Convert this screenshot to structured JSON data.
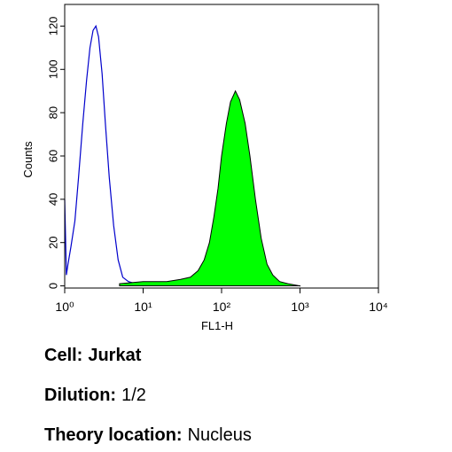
{
  "chart_data": {
    "type": "histogram-overlay",
    "xlabel": "FL1-H",
    "ylabel": "Counts",
    "xscale": "log",
    "xlim": [
      1,
      10000
    ],
    "xticks": [
      {
        "value": 1,
        "label": "10⁰"
      },
      {
        "value": 10,
        "label": "10¹"
      },
      {
        "value": 100,
        "label": "10²"
      },
      {
        "value": 1000,
        "label": "10³"
      },
      {
        "value": 10000,
        "label": "10⁴"
      }
    ],
    "ylim": [
      -1,
      130
    ],
    "yticks": [
      0,
      20,
      40,
      60,
      80,
      100,
      120
    ],
    "series": [
      {
        "style": "outline",
        "color": "#0000cc",
        "x": [
          1,
          1.05,
          1.1,
          1.2,
          1.35,
          1.5,
          1.7,
          1.9,
          2.1,
          2.3,
          2.5,
          2.7,
          3.0,
          3.3,
          3.7,
          4.2,
          4.8,
          5.5,
          6.5,
          8,
          10
        ],
        "values": [
          40,
          5,
          10,
          18,
          30,
          50,
          75,
          95,
          110,
          118,
          120,
          115,
          98,
          75,
          50,
          28,
          12,
          4,
          2,
          1,
          0
        ]
      },
      {
        "style": "filled",
        "color": "#00ff00",
        "x": [
          5,
          10,
          20,
          30,
          40,
          50,
          60,
          70,
          80,
          90,
          100,
          115,
          130,
          150,
          170,
          200,
          230,
          270,
          320,
          380,
          450,
          550,
          700,
          1000
        ],
        "values": [
          1,
          2,
          2,
          3,
          4,
          7,
          12,
          20,
          32,
          45,
          60,
          75,
          85,
          90,
          86,
          75,
          60,
          40,
          22,
          10,
          5,
          2,
          1,
          0
        ]
      }
    ]
  },
  "info": [
    {
      "label": "Cell:",
      "value": "Jurkat"
    },
    {
      "label": "Dilution:",
      "value": "1/2"
    },
    {
      "label": "Theory location:",
      "value": "Nucleus"
    }
  ]
}
